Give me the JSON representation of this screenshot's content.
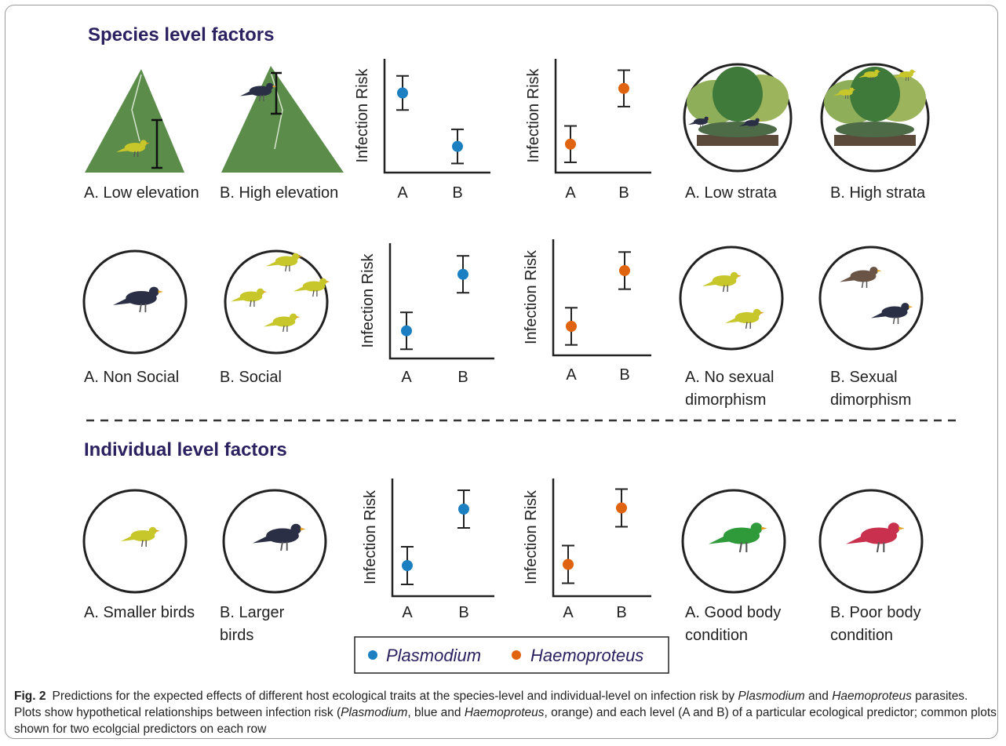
{
  "sections": [
    {
      "title": "Species level factors"
    },
    {
      "title": "Individual level factors"
    }
  ],
  "rows": [
    {
      "left": [
        [
          "A. Low elevation"
        ],
        [
          "B. High elevation"
        ]
      ],
      "right": [
        [
          "A. Low strata"
        ],
        [
          "B. High strata"
        ]
      ]
    },
    {
      "left": [
        [
          "A. Non Social"
        ],
        [
          "B. Social"
        ]
      ],
      "right": [
        [
          "A. No sexual",
          "dimorphism"
        ],
        [
          "B. Sexual",
          "dimorphism"
        ]
      ]
    },
    {
      "left": [
        [
          "A. Smaller birds"
        ],
        [
          "B. Larger",
          "birds"
        ]
      ],
      "right": [
        [
          "A. Good body",
          "condition"
        ],
        [
          "B. Poor body",
          "condition"
        ]
      ]
    }
  ],
  "chart_data": [
    {
      "type": "errorbar",
      "y_label": "Infection Risk",
      "categories": [
        "A",
        "B"
      ],
      "values": [
        7.0,
        2.3
      ],
      "errors": [
        1.5,
        1.5
      ],
      "color": "#1b7fc2",
      "ylim": [
        0,
        10
      ]
    },
    {
      "type": "errorbar",
      "y_label": "Infection Risk",
      "categories": [
        "A",
        "B"
      ],
      "values": [
        2.5,
        7.4
      ],
      "errors": [
        1.6,
        1.6
      ],
      "color": "#e0640f",
      "ylim": [
        0,
        10
      ]
    },
    {
      "type": "errorbar",
      "y_label": "Infection Risk",
      "categories": [
        "A",
        "B"
      ],
      "values": [
        2.4,
        7.3
      ],
      "errors": [
        1.6,
        1.6
      ],
      "color": "#1b7fc2",
      "ylim": [
        0,
        10
      ]
    },
    {
      "type": "errorbar",
      "y_label": "Infection Risk",
      "categories": [
        "A",
        "B"
      ],
      "values": [
        2.5,
        7.3
      ],
      "errors": [
        1.6,
        1.6
      ],
      "color": "#e0640f",
      "ylim": [
        0,
        10
      ]
    },
    {
      "type": "errorbar",
      "y_label": "Infection Risk",
      "categories": [
        "A",
        "B"
      ],
      "values": [
        2.6,
        7.4
      ],
      "errors": [
        1.6,
        1.6
      ],
      "color": "#1b7fc2",
      "ylim": [
        0,
        10
      ]
    },
    {
      "type": "errorbar",
      "y_label": "Infection Risk",
      "categories": [
        "A",
        "B"
      ],
      "values": [
        2.7,
        7.5
      ],
      "errors": [
        1.6,
        1.6
      ],
      "color": "#e0640f",
      "ylim": [
        0,
        10
      ]
    }
  ],
  "legend": [
    {
      "name": "Plasmodium",
      "color": "#1b7fc2"
    },
    {
      "name": "Haemoproteus",
      "color": "#e0640f"
    }
  ],
  "caption": {
    "label": "Fig. 2",
    "parts": [
      "Predictions for the expected effects of different host ecological traits at the species-level and individual-level on infection risk by ",
      "Plasmodium",
      " and ",
      "Haemoproteus",
      " parasites. Plots show hypothetical relationships between infection risk (",
      "Plasmodium",
      ", blue and ",
      "Haemoproteus",
      ", orange) and each level (A and B) of a particular ecological predictor; common plots shown for two ecolgcial predictors on each row"
    ]
  }
}
